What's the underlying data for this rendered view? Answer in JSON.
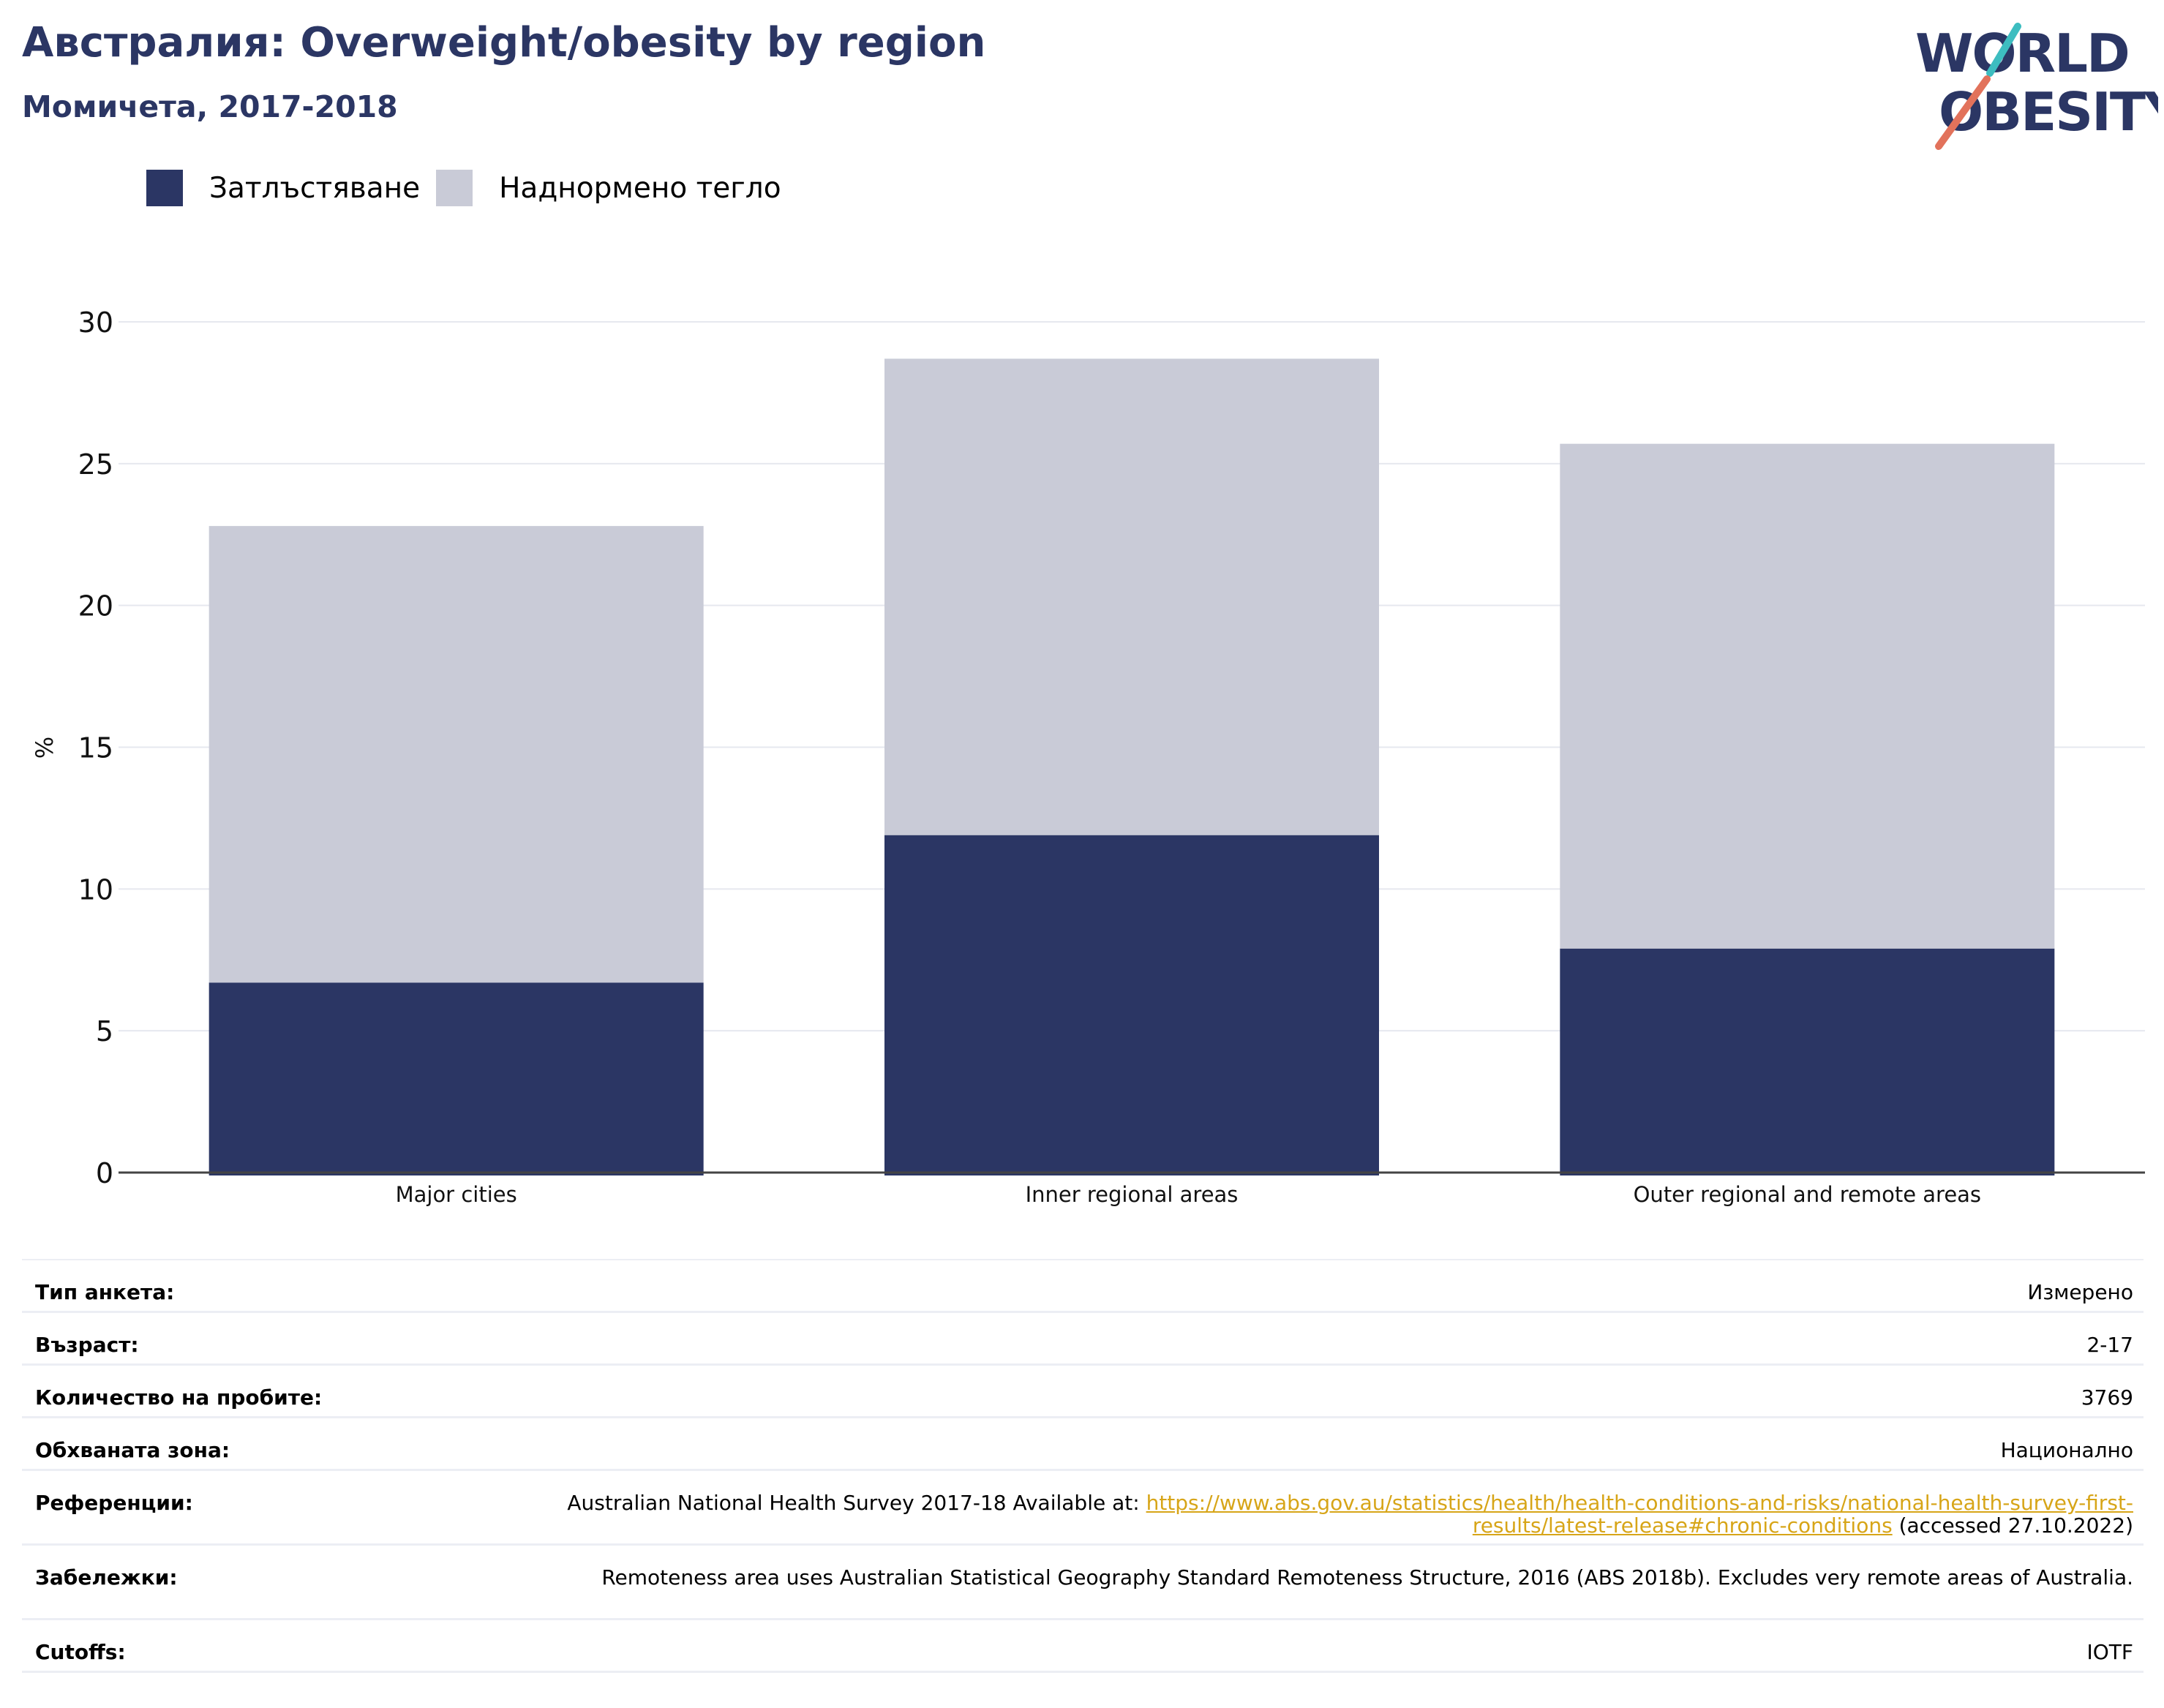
{
  "header": {
    "title": "Австралия: Overweight/obesity by region",
    "subtitle": "Момичета, 2017-2018"
  },
  "logo": {
    "line1": "WORLD",
    "line2": "OBESITY"
  },
  "colors": {
    "obesity": "#2b3664",
    "overweight": "#c9cbd7",
    "title": "#2b3664",
    "grid": "#e6e8ef",
    "link": "#d7a518",
    "logo_teal": "#3dbdc0",
    "logo_red": "#e2725b"
  },
  "chart_data": {
    "type": "bar",
    "stacked": true,
    "categories": [
      "Major cities",
      "Inner regional areas",
      "Outer regional and remote areas"
    ],
    "series": [
      {
        "name": "Затлъстяване",
        "values": [
          6.7,
          11.9,
          7.9
        ]
      },
      {
        "name": "Наднормено тегло",
        "values": [
          16.1,
          16.8,
          17.8
        ]
      }
    ],
    "totals": [
      22.8,
      28.7,
      25.7
    ],
    "ylabel": "%",
    "xlabel": "",
    "ylim": [
      0,
      30
    ],
    "yticks": [
      0,
      5,
      10,
      15,
      20,
      25,
      30
    ],
    "grid": true,
    "legend_position": "top-left"
  },
  "info_table": [
    {
      "key": "Тип анкета:",
      "value": "Измерено"
    },
    {
      "key": "Възраст:",
      "value": "2-17"
    },
    {
      "key": "Количество на пробите:",
      "value": "3769"
    },
    {
      "key": "Обхваната зона:",
      "value": "Национално"
    },
    {
      "key": "Референции:",
      "value_prefix": "Australian National Health Survey 2017-18 Available at: ",
      "link_text": "https://www.abs.gov.au/statistics/health/health-conditions-and-risks/national-health-survey-first-results/latest-release#chronic-conditions",
      "value_suffix": " (accessed 27.10.2022)"
    },
    {
      "key": "Забележки:",
      "value": "Remoteness area uses Australian Statistical Geography Standard Remoteness Structure, 2016 (ABS 2018b). Excludes very remote areas of Australia."
    },
    {
      "key": "Cutoffs:",
      "value": "IOTF"
    }
  ]
}
